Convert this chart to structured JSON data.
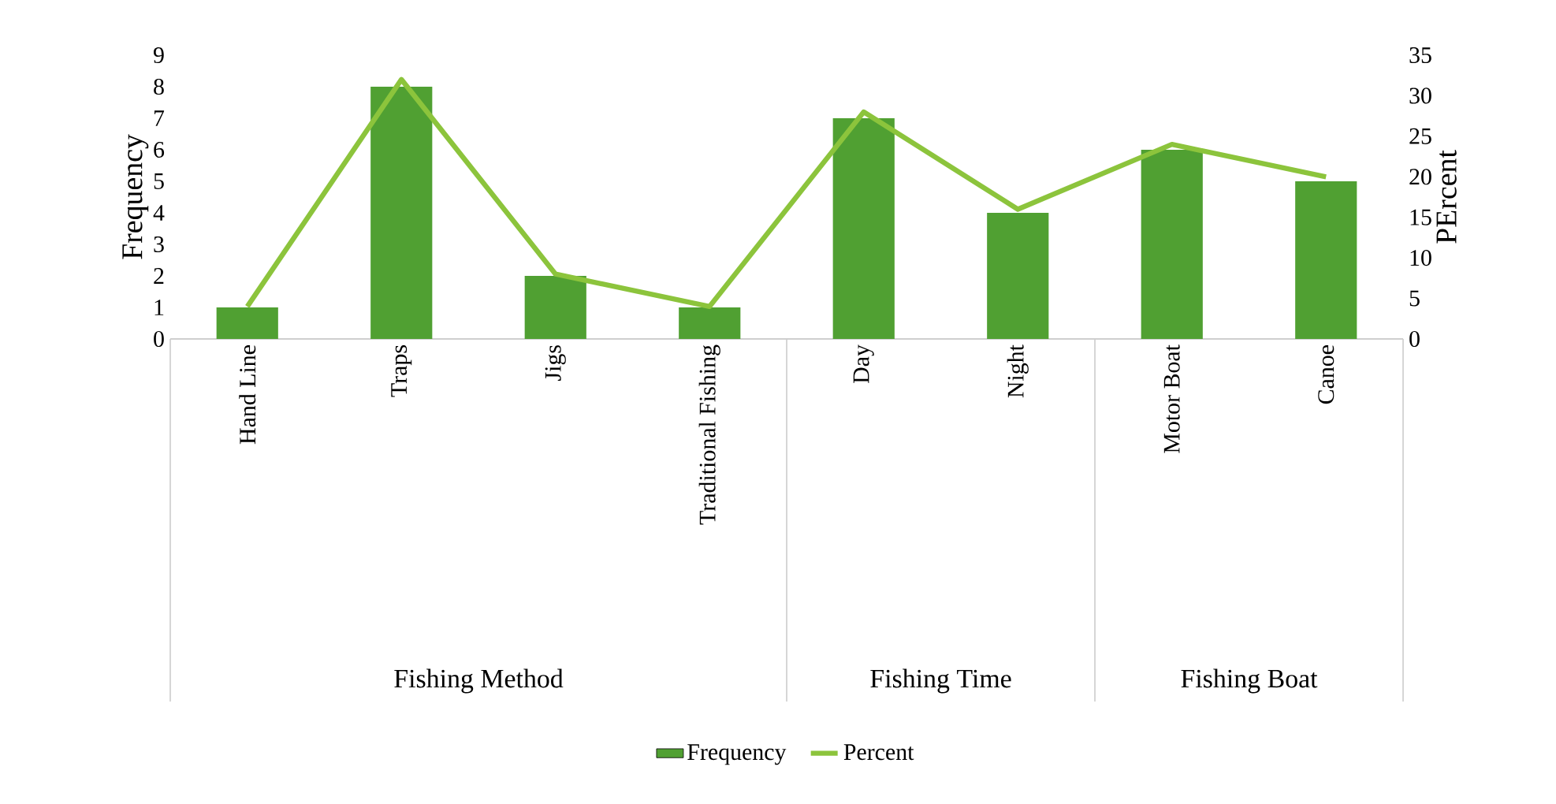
{
  "chart_data": {
    "type": "bar",
    "categories": [
      "Hand Line",
      "Traps",
      "Jigs",
      "Traditional Fishing",
      "Day",
      "Night",
      "Motor Boat",
      "Canoe"
    ],
    "series": [
      {
        "name": "Frequency",
        "color": "#50a032",
        "values": [
          1,
          8,
          2,
          1,
          7,
          4,
          6,
          5
        ]
      },
      {
        "name": "Percent",
        "type": "line",
        "axis": "y2",
        "color": "#8cc43c",
        "values": [
          4,
          32,
          8,
          4,
          28,
          16,
          24,
          20
        ]
      }
    ],
    "ylabel": "Frequency",
    "y2label": "PErcent",
    "ylim": [
      0,
      9
    ],
    "yticks": [
      0,
      1,
      2,
      3,
      4,
      5,
      6,
      7,
      8,
      9
    ],
    "y2lim": [
      0,
      35
    ],
    "y2ticks": [
      0,
      5,
      10,
      15,
      20,
      25,
      30,
      35
    ],
    "annotations": [
      "Fishing Method",
      "Fishing Time",
      "Fishing Boat"
    ],
    "legend": "bottom",
    "grid": false,
    "marker": "none"
  }
}
